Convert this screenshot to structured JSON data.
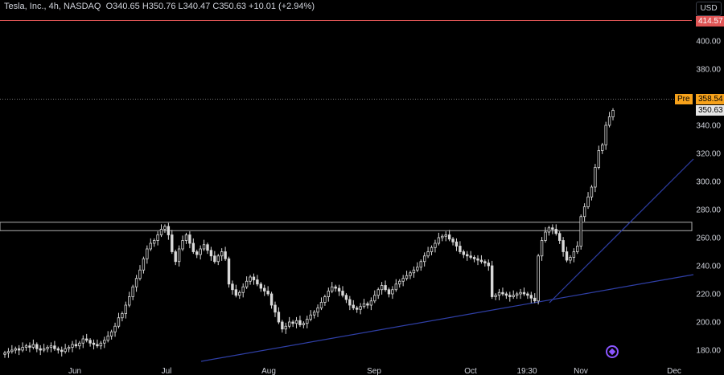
{
  "legend": {
    "symbol": "Tesla, Inc., 4h, NASDAQ",
    "open_label": "O",
    "open": "340.65",
    "high_label": "H",
    "high": "350.76",
    "low_label": "L",
    "low": "340.47",
    "close_label": "C",
    "close": "350.63",
    "change": "+10.01 (+2.94%)"
  },
  "currency": "USD",
  "tags": {
    "red_level": "414.57",
    "pre_label": "Pre",
    "pre_price": "358.54",
    "last_price": "350.63"
  },
  "colors": {
    "background": "#000000",
    "candle": "#d9d9d9",
    "trendline": "#2f3fa6",
    "resistance_line": "#e05555",
    "pre_tag": "#f7a21b",
    "zone": "#b0b0b0"
  },
  "chart_data": {
    "type": "candlestick",
    "title": "",
    "ylim": [
      172,
      428
    ],
    "y_ticks": [
      180,
      200,
      220,
      240,
      260,
      280,
      300,
      320,
      340,
      360,
      380,
      400
    ],
    "x_tick_labels": [
      "Jun",
      "Jul",
      "Aug",
      "Sep",
      "Oct",
      "19:30",
      "Nov",
      "Dec"
    ],
    "resistance_zone": [
      265,
      271
    ],
    "horizontal_level": 414.57,
    "premarket_price": 358.54,
    "last_price": 350.63,
    "trendlines": [
      {
        "from": [
          "Jul 07",
          182
        ],
        "to": [
          "Dec 06",
          233
        ]
      },
      {
        "from": [
          "Oct 22",
          215
        ],
        "to": [
          "Dec 06",
          317
        ]
      }
    ],
    "closes": [
      178,
      179,
      180,
      181,
      180,
      182,
      183,
      182,
      184,
      181,
      180,
      181,
      182,
      183,
      181,
      180,
      179,
      181,
      182,
      184,
      183,
      185,
      188,
      187,
      185,
      184,
      183,
      185,
      187,
      190,
      193,
      197,
      203,
      206,
      212,
      218,
      225,
      231,
      237,
      245,
      252,
      256,
      258,
      262,
      266,
      268,
      262,
      250,
      243,
      252,
      258,
      262,
      256,
      250,
      248,
      252,
      255,
      251,
      247,
      243,
      247,
      250,
      245,
      227,
      223,
      219,
      221,
      225,
      229,
      232,
      230,
      227,
      224,
      222,
      220,
      212,
      207,
      200,
      195,
      197,
      200,
      199,
      201,
      198,
      199,
      202,
      205,
      207,
      210,
      214,
      218,
      222,
      225,
      224,
      222,
      219,
      216,
      212,
      210,
      209,
      211,
      213,
      212,
      215,
      219,
      223,
      226,
      223,
      220,
      223,
      227,
      229,
      231,
      233,
      235,
      237,
      239,
      243,
      247,
      250,
      253,
      256,
      260,
      261,
      262,
      259,
      257,
      254,
      250,
      248,
      247,
      246,
      245,
      244,
      243,
      242,
      240,
      218,
      219,
      221,
      220,
      219,
      218,
      219,
      220,
      221,
      220,
      219,
      217,
      215,
      247,
      258,
      264,
      267,
      266,
      263,
      258,
      250,
      244,
      246,
      250,
      254,
      275,
      282,
      289,
      296,
      310,
      322,
      326,
      340,
      346,
      350.63
    ]
  }
}
